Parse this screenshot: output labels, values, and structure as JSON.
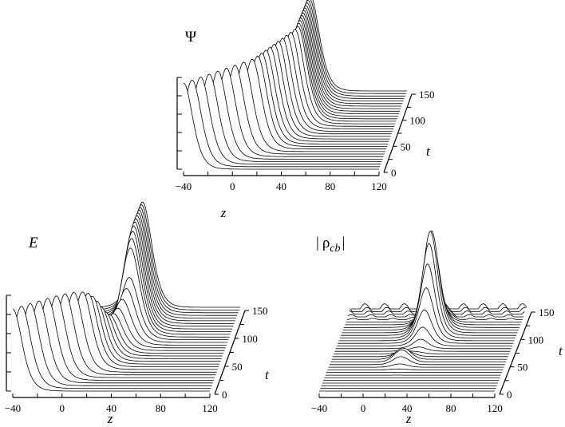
{
  "panels": [
    {
      "id": "psi",
      "title": "Ψ",
      "z_label": "z",
      "t_label": "t",
      "z_ticks": [
        "−40",
        "0",
        "40",
        "80",
        "120"
      ],
      "t_ticks": [
        "0",
        "50",
        "100",
        "150"
      ],
      "profile": "soliton_psi"
    },
    {
      "id": "e",
      "title": "E",
      "z_label": "z",
      "t_label": "t",
      "z_ticks": [
        "−40",
        "0",
        "40",
        "80",
        "120"
      ],
      "t_ticks": [
        "0",
        "50",
        "100",
        "150"
      ],
      "profile": "soliton_e"
    },
    {
      "id": "rho",
      "title": "|ρcb|",
      "title_main": "ρ",
      "title_sub": "cb",
      "z_label": "z",
      "t_label": "t",
      "z_ticks": [
        "−40",
        "0",
        "40",
        "80",
        "120"
      ],
      "t_ticks": [
        "0",
        "50",
        "100",
        "150"
      ],
      "profile": "localized_rho"
    }
  ],
  "chart_data": [
    {
      "type": "surface-waterfall",
      "title": "Ψ",
      "xlabel": "z",
      "ylabel": "t",
      "xlim": [
        -40,
        120
      ],
      "ylim": [
        0,
        150
      ],
      "x_ticks": [
        -40,
        0,
        40,
        80,
        120
      ],
      "y_ticks": [
        0,
        50,
        100,
        150
      ],
      "series": [
        {
          "t": 0,
          "z_peak": -40
        },
        {
          "t": 50,
          "z_peak": 20
        },
        {
          "t": 75,
          "z_peak": 35
        },
        {
          "t": 100,
          "z_peak": 40
        },
        {
          "t": 150,
          "z_peak": 40
        }
      ]
    },
    {
      "type": "surface-waterfall",
      "title": "E",
      "xlabel": "z",
      "ylabel": "t",
      "xlim": [
        -40,
        120
      ],
      "ylim": [
        0,
        150
      ],
      "x_ticks": [
        -40,
        0,
        40,
        80,
        120
      ],
      "y_ticks": [
        0,
        50,
        100,
        150
      ],
      "series": [
        {
          "t": 0,
          "z_peak": -40
        },
        {
          "t": 50,
          "z_peak": 20
        },
        {
          "t": 75,
          "z_peak": 35
        },
        {
          "t": 100,
          "z_peak": 40
        },
        {
          "t": 150,
          "z_peak": 40
        }
      ]
    },
    {
      "type": "surface-waterfall",
      "title": "|ρcb|",
      "xlabel": "z",
      "ylabel": "t",
      "xlim": [
        -40,
        120
      ],
      "ylim": [
        0,
        150
      ],
      "x_ticks": [
        -40,
        0,
        40,
        80,
        120
      ],
      "y_ticks": [
        0,
        50,
        100,
        150
      ],
      "series": [
        {
          "t": 0,
          "z_peak": 40
        },
        {
          "t": 75,
          "z_peak": 40
        },
        {
          "t": 100,
          "z_peak": 40
        },
        {
          "t": 150,
          "z_peak": 40
        }
      ]
    }
  ]
}
